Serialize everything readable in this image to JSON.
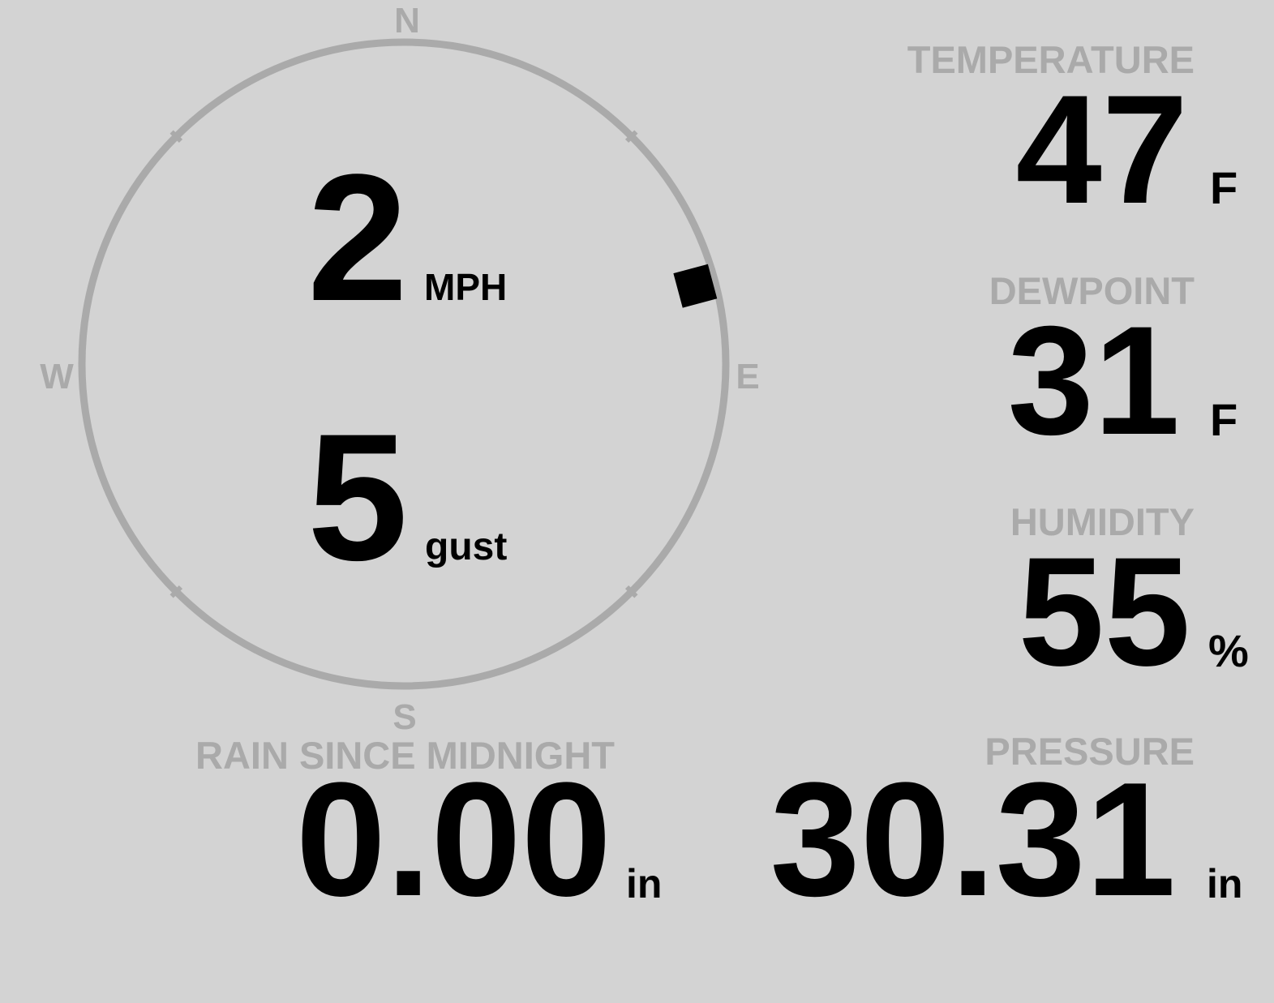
{
  "colors": {
    "background": "#d3d3d3",
    "label": "#aaaaaa",
    "value": "#000000",
    "ring": "#aaaaaa"
  },
  "wind": {
    "compass": {
      "n": "N",
      "e": "E",
      "s": "S",
      "w": "W"
    },
    "direction_degrees": 75,
    "speed": "2",
    "speed_unit": "MPH",
    "gust": "5",
    "gust_label": "gust"
  },
  "temperature": {
    "label": "TEMPERATURE",
    "value": "47",
    "unit": "F"
  },
  "dewpoint": {
    "label": "DEWPOINT",
    "value": "31",
    "unit": "F"
  },
  "humidity": {
    "label": "HUMIDITY",
    "value": "55",
    "unit": "%"
  },
  "rain": {
    "label": "RAIN SINCE MIDNIGHT",
    "value": "0.00",
    "unit": "in"
  },
  "pressure": {
    "label": "PRESSURE",
    "value": "30.31",
    "unit": "in"
  }
}
